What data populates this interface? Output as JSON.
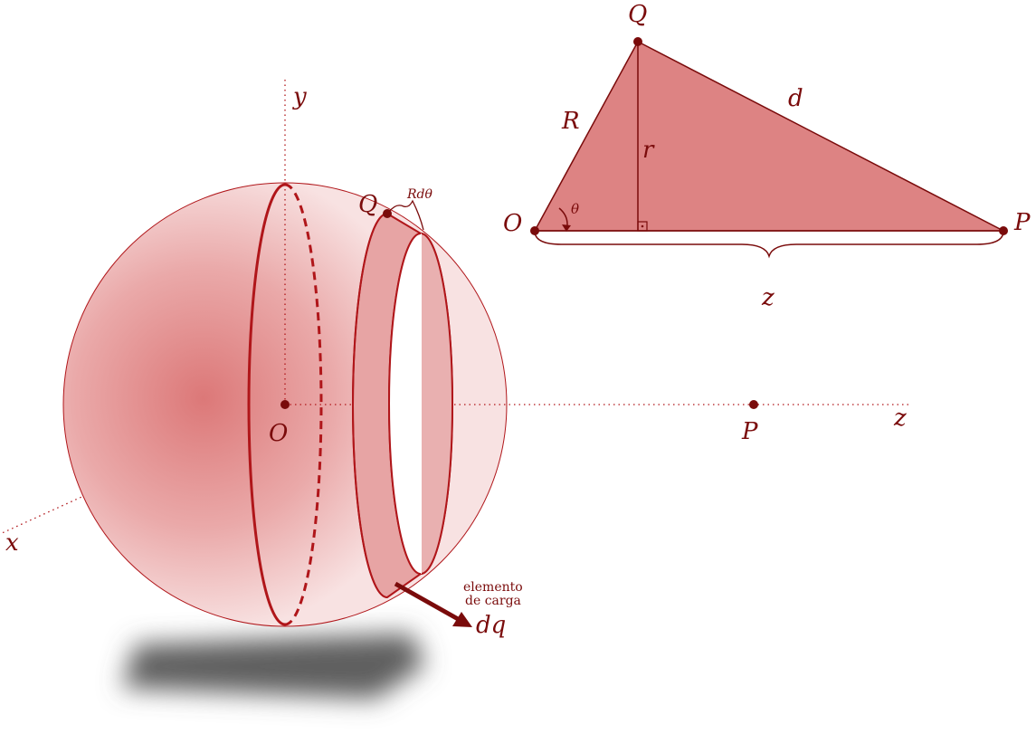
{
  "colors": {
    "dark_red": "#7a0b0b",
    "line_red": "#b0161a",
    "fill_red": "#d97676",
    "sphere_center": "#dd7b7b",
    "sphere_edge": "#f6dede",
    "shadow": "#5e5e5e"
  },
  "sphere_view": {
    "axis_x_label": "x",
    "axis_y_label": "y",
    "axis_z_label": "z",
    "origin_label": "O",
    "point_p_label": "P",
    "point_q_label": "Q",
    "arc_label": "Rdθ",
    "charge_note_line1": "elemento",
    "charge_note_line2": "de carga",
    "charge_label": "dq"
  },
  "triangle_view": {
    "vertex_q_label": "Q",
    "vertex_o_label": "O",
    "vertex_p_label": "P",
    "side_r_label": "R",
    "side_d_label": "d",
    "height_label": "r",
    "angle_label": "θ",
    "base_label": "z"
  }
}
